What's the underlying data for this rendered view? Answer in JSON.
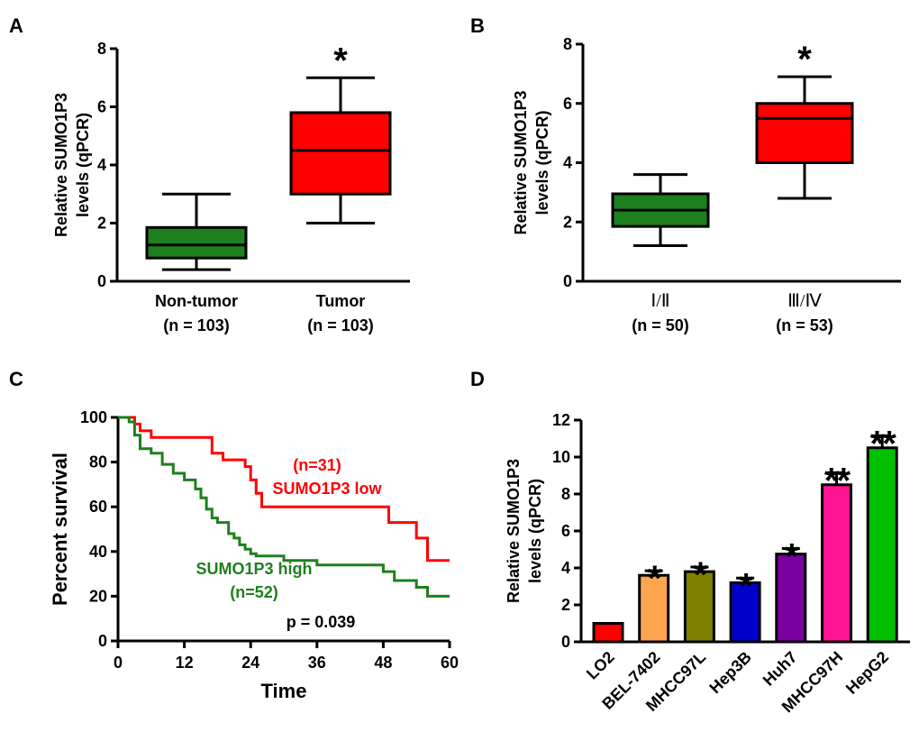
{
  "panels": {
    "a": "A",
    "b": "B",
    "c": "C",
    "d": "D"
  },
  "colors": {
    "green": "#1e7f1e",
    "red": "#ff0000",
    "survival_low": "#ff0000",
    "survival_high": "#1e7f1e"
  },
  "chart_data": [
    {
      "panel": "A",
      "type": "box",
      "ylabel_line1": "Relative SUMO1P3",
      "ylabel_line2": "levels (qPCR)",
      "ylim": [
        0,
        8
      ],
      "yticks": [
        "0",
        "2",
        "4",
        "6",
        "8"
      ],
      "groups": [
        {
          "label": "Non-tumor",
          "n": "(n = 103)",
          "min": 0.4,
          "q1": 0.8,
          "median": 1.25,
          "q3": 1.85,
          "max": 3.0,
          "color": "#1e7f1e",
          "sig": ""
        },
        {
          "label": "Tumor",
          "n": "(n = 103)",
          "min": 2.0,
          "q1": 3.0,
          "median": 4.5,
          "q3": 5.8,
          "max": 7.0,
          "color": "#ff0000",
          "sig": "*"
        }
      ]
    },
    {
      "panel": "B",
      "type": "box",
      "ylabel_line1": "Relative SUMO1P3",
      "ylabel_line2": "levels (qPCR)",
      "ylim": [
        0,
        8
      ],
      "yticks": [
        "0",
        "2",
        "4",
        "6",
        "8"
      ],
      "groups": [
        {
          "label": "Ⅰ/Ⅱ",
          "n": "(n = 50)",
          "min": 1.2,
          "q1": 1.85,
          "median": 2.4,
          "q3": 2.95,
          "max": 3.6,
          "color": "#1e7f1e",
          "sig": ""
        },
        {
          "label": "Ⅲ/Ⅳ",
          "n": "(n = 53)",
          "min": 2.8,
          "q1": 4.0,
          "median": 5.5,
          "q3": 6.0,
          "max": 6.9,
          "color": "#ff0000",
          "sig": "*"
        }
      ]
    },
    {
      "panel": "C",
      "type": "line",
      "xlabel": "Time",
      "ylabel": "Percent survival",
      "xlim": [
        0,
        60
      ],
      "ylim": [
        0,
        100
      ],
      "xticks": [
        "0",
        "12",
        "24",
        "36",
        "48",
        "60"
      ],
      "yticks": [
        "0",
        "20",
        "40",
        "60",
        "80",
        "100"
      ],
      "series": [
        {
          "name": "SUMO1P3 low",
          "n_label": "(n=31)",
          "color": "#ff0000",
          "x": [
            0,
            3,
            3,
            4,
            4,
            6,
            6,
            17,
            17,
            19,
            19,
            23,
            23,
            24,
            24,
            25,
            25,
            26,
            26,
            49,
            49,
            54,
            54,
            56,
            56,
            60
          ],
          "y": [
            100,
            100,
            97,
            97,
            94,
            94,
            91,
            91,
            84,
            84,
            81,
            81,
            78,
            78,
            72,
            72,
            66,
            66,
            60,
            60,
            53,
            53,
            46,
            46,
            36,
            36
          ]
        },
        {
          "name": "SUMO1P3 high",
          "n_label": "(n=52)",
          "color": "#1e7f1e",
          "x": [
            0,
            2,
            2,
            3,
            3,
            4,
            4,
            6,
            6,
            8,
            8,
            10,
            10,
            12,
            12,
            14,
            14,
            15,
            15,
            16,
            16,
            17,
            17,
            18,
            18,
            20,
            20,
            21,
            21,
            22,
            22,
            23,
            23,
            24,
            24,
            25,
            25,
            30,
            30,
            36,
            36,
            48,
            48,
            50,
            50,
            54,
            54,
            56,
            56,
            60
          ],
          "y": [
            100,
            100,
            98,
            98,
            92,
            92,
            86,
            86,
            84,
            84,
            79,
            79,
            75,
            75,
            72,
            72,
            68,
            68,
            64,
            64,
            59,
            59,
            55,
            55,
            53,
            53,
            48,
            48,
            46,
            46,
            43,
            43,
            41,
            41,
            39,
            39,
            38,
            38,
            36,
            36,
            34,
            34,
            31,
            31,
            27,
            27,
            24,
            24,
            20,
            20
          ]
        }
      ],
      "annotation": "p = 0.039"
    },
    {
      "panel": "D",
      "type": "bar",
      "ylabel_line1": "Relative SUMO1P3",
      "ylabel_line2": "levels (qPCR)",
      "ylim": [
        0,
        12
      ],
      "yticks": [
        "0",
        "2",
        "4",
        "6",
        "8",
        "10",
        "12"
      ],
      "categories": [
        "LO2",
        "BEL-7402",
        "MHCC97L",
        "Hep3B",
        "Huh7",
        "MHCC97H",
        "HepG2"
      ],
      "values": [
        1.0,
        3.6,
        3.8,
        3.2,
        4.75,
        8.5,
        10.5
      ],
      "errors": [
        0.0,
        0.25,
        0.25,
        0.25,
        0.3,
        0.65,
        0.65
      ],
      "colors": [
        "#ff0000",
        "#ffa54f",
        "#808000",
        "#0000cd",
        "#7b00a0",
        "#ff1493",
        "#00c000"
      ],
      "sig": [
        "",
        "*",
        "*",
        "*",
        "*",
        "**",
        "**"
      ]
    }
  ]
}
